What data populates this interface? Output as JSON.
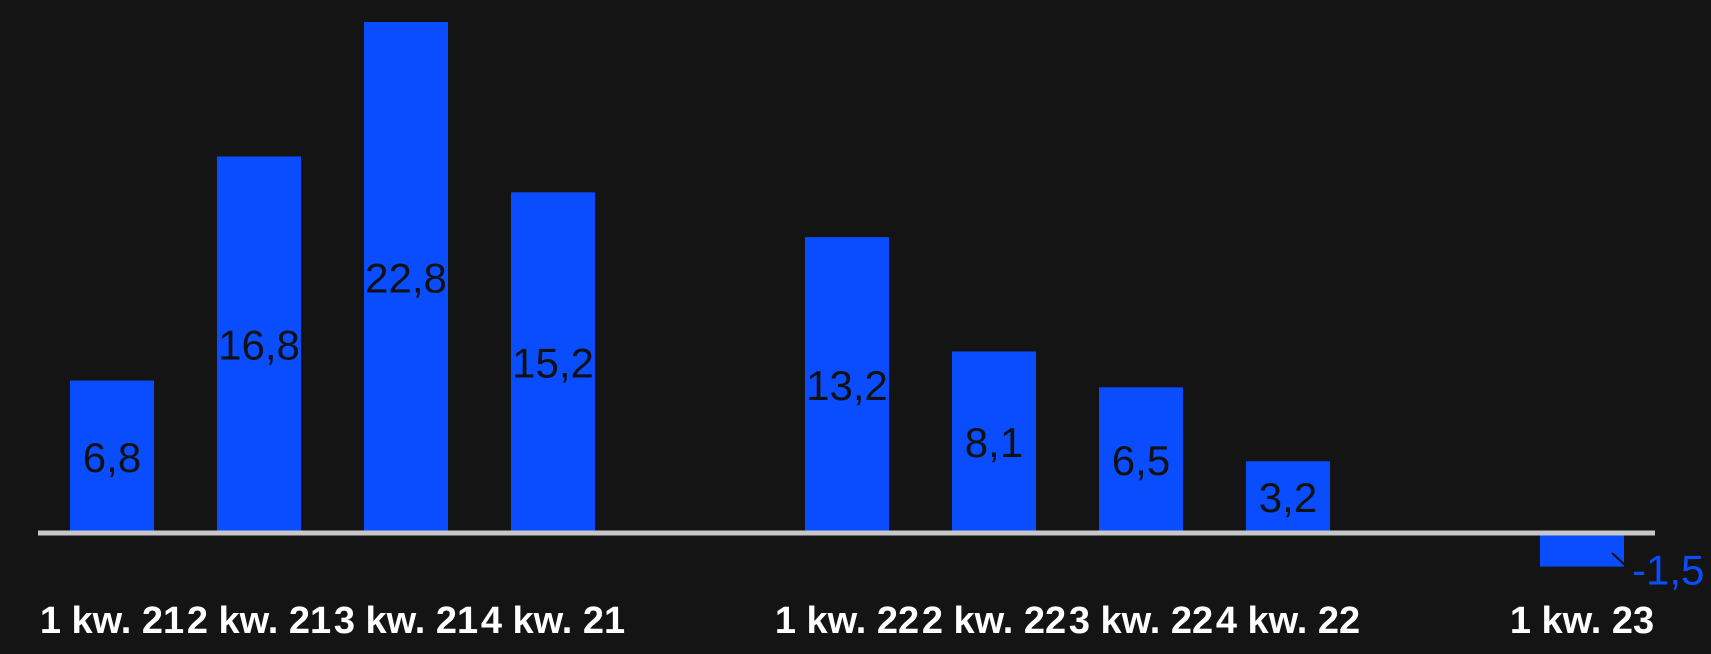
{
  "chart_data": {
    "type": "bar",
    "categories": [
      "1 kw. 21",
      "2 kw. 21",
      "3 kw. 21",
      "4 kw. 21",
      "",
      "1 kw. 22",
      "2 kw. 22",
      "3 kw. 22",
      "4 kw. 22",
      "",
      "1 kw. 23"
    ],
    "values": [
      6.8,
      16.8,
      22.8,
      15.2,
      null,
      13.2,
      8.1,
      6.5,
      3.2,
      null,
      -1.5
    ],
    "value_labels": [
      "6,8",
      "16,8",
      "22,8",
      "15,2",
      "",
      "13,2",
      "8,1",
      "6,5",
      "3,2",
      "",
      "-1,5"
    ],
    "title": "",
    "xlabel": "",
    "ylabel": "",
    "ylim": [
      -1.5,
      22.8
    ],
    "grid": false,
    "colors": {
      "background": "#141414",
      "bar": "#0a4dff",
      "baseline": "#c8c8c8",
      "label_inside": "#111111",
      "label_negative": "#0a4dff",
      "tick_text": "#ffffff"
    }
  }
}
